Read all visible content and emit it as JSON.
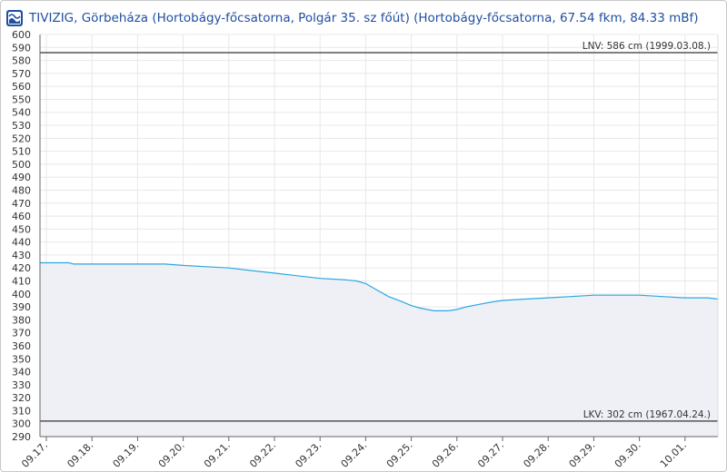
{
  "header": {
    "title": "TIVIZIG, Görbeháza (Hortobágy-főcsatorna, Polgár 35. sz főút) (Hortobágy-főcsatorna, 67.54 fkm, 84.33 mBf)",
    "logo_icon": "tivizig-logo-icon"
  },
  "colors": {
    "series_line": "#2ba7e0",
    "series_fill": "#eef0f6",
    "reference_line": "#555555",
    "grid": "#e8e8e8",
    "title": "#1f4fa0"
  },
  "chart_data": {
    "type": "area",
    "title": "",
    "xlabel": "",
    "ylabel": "",
    "ylim": [
      290,
      600
    ],
    "ytick_step": 10,
    "grid": true,
    "x_categories": [
      "09.17.",
      "09.18.",
      "09.19.",
      "09.20.",
      "09.21.",
      "09.22.",
      "09.23.",
      "09.24.",
      "09.25.",
      "09.26.",
      "09.27.",
      "09.28.",
      "09.29.",
      "09.30.",
      "10.01."
    ],
    "series": [
      {
        "x": [
          0,
          0.5,
          0.6,
          1.0,
          1.5,
          2.0,
          2.6,
          3.0,
          3.5,
          4.0,
          4.5,
          5.0,
          5.5,
          6.0,
          6.5,
          6.8,
          7.0,
          7.2,
          7.5,
          7.8,
          8.0,
          8.2,
          8.5,
          8.8,
          9.0,
          9.2,
          9.5,
          9.8,
          10.0,
          10.5,
          11.0,
          11.5,
          12.0,
          12.5,
          13.0,
          13.5,
          14.0,
          14.5,
          14.9
        ],
        "y": [
          424,
          424,
          423,
          423,
          423,
          423,
          423,
          422,
          421,
          420,
          418,
          416,
          414,
          412,
          411,
          410,
          408,
          404,
          398,
          394,
          391,
          389,
          387,
          387,
          388,
          390,
          392,
          394,
          395,
          396,
          397,
          398,
          399,
          399,
          399,
          398,
          397,
          397,
          396
        ]
      }
    ],
    "reference_lines": [
      {
        "label": "LNV: 586 cm (1999.03.08.)",
        "value": 586
      },
      {
        "label": "LKV: 302 cm (1967.04.24.)",
        "value": 302
      }
    ]
  }
}
